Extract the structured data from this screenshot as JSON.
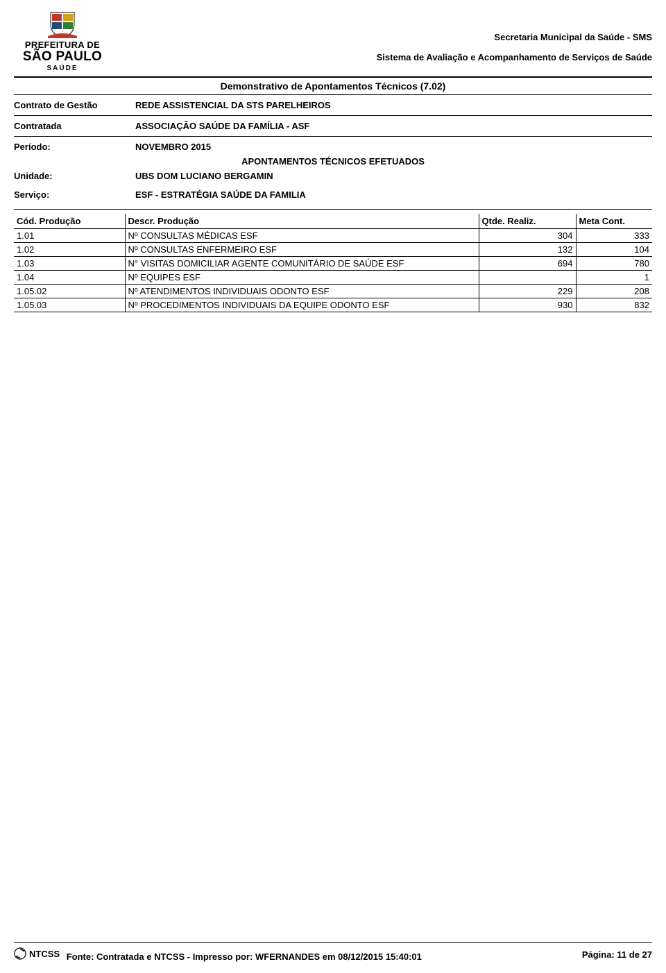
{
  "logo": {
    "line1": "PREFEITURA DE",
    "line2": "SÃO PAULO",
    "line3": "SAÚDE"
  },
  "header": {
    "org": "Secretaria Municipal da Saúde - SMS",
    "system": "Sistema de Avaliação e Acompanhamento de Serviços de Saúde"
  },
  "report": {
    "title": "Demonstrativo de Apontamentos Técnicos (7.02)",
    "subtitle": "APONTAMENTOS TÉCNICOS EFETUADOS"
  },
  "meta": {
    "contrato_label": "Contrato de Gestão",
    "contrato_value": "REDE ASSISTENCIAL DA STS PARELHEIROS",
    "contratada_label": "Contratada",
    "contratada_value": "ASSOCIAÇÃO SAÚDE DA FAMÍLIA - ASF",
    "periodo_label": "Período:",
    "periodo_value": "NOVEMBRO 2015",
    "unidade_label": "Unidade:",
    "unidade_value": "UBS DOM LUCIANO BERGAMIN",
    "servico_label": "Serviço:",
    "servico_value": "ESF - ESTRATÉGIA SAÚDE DA FAMILIA"
  },
  "table": {
    "headers": {
      "cod": "Cód. Produção",
      "descr": "Descr. Produção",
      "qtde": "Qtde. Realiz.",
      "meta": "Meta Cont."
    },
    "rows": [
      {
        "cod": "1.01",
        "descr": "Nº CONSULTAS MÉDICAS ESF",
        "qtde": "304",
        "meta": "333"
      },
      {
        "cod": "1.02",
        "descr": "Nº CONSULTAS ENFERMEIRO ESF",
        "qtde": "132",
        "meta": "104"
      },
      {
        "cod": "1.03",
        "descr": "N° VISITAS DOMICILIAR AGENTE COMUNITÁRIO DE SAÚDE ESF",
        "qtde": "694",
        "meta": "780"
      },
      {
        "cod": "1.04",
        "descr": "Nº EQUIPES ESF",
        "qtde": "",
        "meta": "1"
      },
      {
        "cod": "1.05.02",
        "descr": "Nº ATENDIMENTOS INDIVIDUAIS ODONTO ESF",
        "qtde": "229",
        "meta": "208"
      },
      {
        "cod": "1.05.03",
        "descr": "Nº PROCEDIMENTOS INDIVIDUAIS  DA EQUIPE ODONTO ESF",
        "qtde": "930",
        "meta": "832"
      }
    ]
  },
  "footer": {
    "ntcss": "NTCSS",
    "source": "Fonte: Contratada e NTCSS - Impresso por: WFERNANDES em 08/12/2015 15:40:01",
    "page": "Página: 11 de 27"
  },
  "colors": {
    "text": "#000000",
    "border": "#000000",
    "crest_red": "#c0392b",
    "crest_gold": "#d4a017",
    "crest_blue": "#1f4e79",
    "crest_green": "#2e7d32",
    "background": "#ffffff"
  }
}
